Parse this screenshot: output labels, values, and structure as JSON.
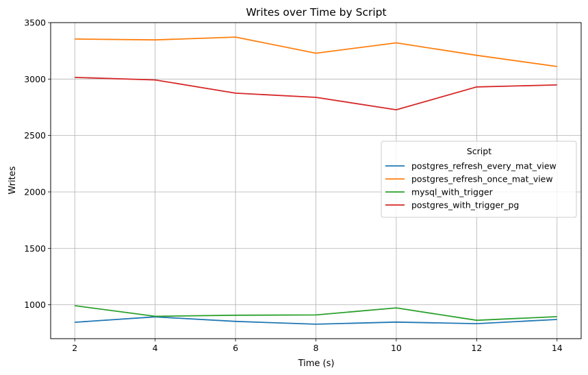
{
  "chart_data": {
    "type": "line",
    "title": "Writes over Time by Script",
    "xlabel": "Time (s)",
    "ylabel": "Writes",
    "xlim": [
      1.4,
      14.6
    ],
    "ylim": [
      700,
      3500
    ],
    "x": [
      2,
      4,
      6,
      8,
      10,
      12,
      14
    ],
    "xticks": [
      2,
      4,
      6,
      8,
      10,
      12,
      14
    ],
    "yticks": [
      1000,
      1500,
      2000,
      2500,
      3000,
      3500
    ],
    "grid": true,
    "legend": {
      "title": "Script",
      "position": "center-right"
    },
    "series": [
      {
        "name": "postgres_refresh_every_mat_view",
        "color": "#1f77b4",
        "values": [
          845,
          893,
          853,
          828,
          847,
          833,
          870
        ]
      },
      {
        "name": "postgres_refresh_once_mat_view",
        "color": "#ff7f0e",
        "values": [
          3355,
          3347,
          3372,
          3229,
          3321,
          3210,
          3111
        ]
      },
      {
        "name": "mysql_with_trigger",
        "color": "#2ca02c",
        "values": [
          992,
          898,
          908,
          910,
          973,
          863,
          895
        ]
      },
      {
        "name": "postgres_with_trigger_pg",
        "color": "#d62728",
        "values": [
          3015,
          2992,
          2875,
          2838,
          2728,
          2930,
          2948
        ]
      }
    ]
  }
}
